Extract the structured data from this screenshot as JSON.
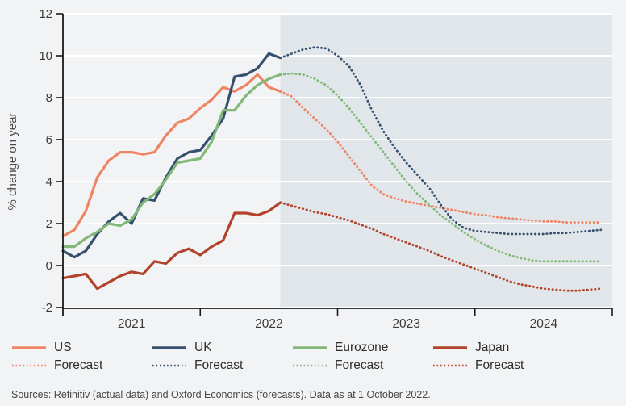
{
  "chart_data": {
    "type": "line",
    "title": "",
    "ylabel": "% change on year",
    "ylim": [
      -2,
      12
    ],
    "yticks": [
      12,
      10,
      8,
      6,
      4,
      2,
      0,
      -2
    ],
    "xtick_year_labels": [
      "2021",
      "2022",
      "2023",
      "2024"
    ],
    "grid": "horizontal white gridlines at every 2 units",
    "legend_position": "bottom",
    "x_months": [
      "2021-01",
      "2021-02",
      "2021-03",
      "2021-04",
      "2021-05",
      "2021-06",
      "2021-07",
      "2021-08",
      "2021-09",
      "2021-10",
      "2021-11",
      "2021-12",
      "2022-01",
      "2022-02",
      "2022-03",
      "2022-04",
      "2022-05",
      "2022-06",
      "2022-07",
      "2022-08",
      "2022-09",
      "2022-10",
      "2022-11",
      "2022-12",
      "2023-01",
      "2023-02",
      "2023-03",
      "2023-04",
      "2023-05",
      "2023-06",
      "2023-07",
      "2023-08",
      "2023-09",
      "2023-10",
      "2023-11",
      "2023-12",
      "2024-01",
      "2024-02",
      "2024-03",
      "2024-04",
      "2024-05",
      "2024-06",
      "2024-07",
      "2024-08",
      "2024-09",
      "2024-10",
      "2024-11",
      "2024-12"
    ],
    "actual_through": "2022-08",
    "forecast_from": "2022-09",
    "forecast_region_start": "2022-08",
    "series": [
      {
        "name": "US",
        "color_key": "us",
        "actual": {
          "start_month": "2021-01",
          "values": [
            1.4,
            1.7,
            2.6,
            4.2,
            5.0,
            5.4,
            5.4,
            5.3,
            5.4,
            6.2,
            6.8,
            7.0,
            7.5,
            7.9,
            8.5,
            8.3,
            8.6,
            9.1,
            8.5,
            8.3
          ]
        },
        "forecast": {
          "start_month": "2022-09",
          "values": [
            8.05,
            7.5,
            7.0,
            6.5,
            5.9,
            5.2,
            4.5,
            3.8,
            3.4,
            3.2,
            3.05,
            2.95,
            2.85,
            2.75,
            2.65,
            2.55,
            2.45,
            2.4,
            2.3,
            2.25,
            2.2,
            2.15,
            2.1,
            2.1,
            2.05,
            2.05,
            2.05,
            2.05
          ]
        }
      },
      {
        "name": "UK",
        "color_key": "uk",
        "actual": {
          "start_month": "2021-01",
          "values": [
            0.7,
            0.4,
            0.7,
            1.5,
            2.1,
            2.5,
            2.0,
            3.2,
            3.1,
            4.2,
            5.1,
            5.4,
            5.5,
            6.2,
            7.0,
            9.0,
            9.1,
            9.4,
            10.1,
            9.9
          ]
        },
        "forecast": {
          "start_month": "2022-09",
          "values": [
            10.1,
            10.3,
            10.4,
            10.35,
            10.0,
            9.5,
            8.6,
            7.4,
            6.4,
            5.6,
            4.9,
            4.3,
            3.7,
            2.9,
            2.2,
            1.8,
            1.65,
            1.6,
            1.55,
            1.5,
            1.5,
            1.5,
            1.5,
            1.55,
            1.55,
            1.6,
            1.65,
            1.7
          ]
        }
      },
      {
        "name": "Eurozone",
        "color_key": "eurozone",
        "actual": {
          "start_month": "2021-01",
          "values": [
            0.9,
            0.9,
            1.3,
            1.6,
            2.0,
            1.9,
            2.2,
            3.0,
            3.4,
            4.1,
            4.9,
            5.0,
            5.1,
            5.9,
            7.4,
            7.4,
            8.1,
            8.6,
            8.9,
            9.1
          ]
        },
        "forecast": {
          "start_month": "2022-09",
          "values": [
            9.15,
            9.1,
            8.9,
            8.6,
            8.1,
            7.5,
            6.8,
            6.1,
            5.4,
            4.7,
            4.0,
            3.4,
            2.9,
            2.4,
            2.0,
            1.6,
            1.25,
            0.95,
            0.7,
            0.5,
            0.35,
            0.25,
            0.2,
            0.2,
            0.2,
            0.2,
            0.2,
            0.2
          ]
        }
      },
      {
        "name": "Japan",
        "color_key": "japan",
        "actual": {
          "start_month": "2021-01",
          "values": [
            -0.6,
            -0.5,
            -0.4,
            -1.1,
            -0.8,
            -0.5,
            -0.3,
            -0.4,
            0.2,
            0.1,
            0.6,
            0.8,
            0.5,
            0.9,
            1.2,
            2.5,
            2.5,
            2.4,
            2.6,
            3.0
          ]
        },
        "forecast": {
          "start_month": "2022-09",
          "values": [
            2.85,
            2.7,
            2.55,
            2.45,
            2.3,
            2.15,
            1.95,
            1.75,
            1.5,
            1.3,
            1.1,
            0.9,
            0.7,
            0.45,
            0.25,
            0.05,
            -0.15,
            -0.35,
            -0.55,
            -0.75,
            -0.9,
            -1.0,
            -1.1,
            -1.15,
            -1.2,
            -1.2,
            -1.15,
            -1.1
          ]
        }
      }
    ]
  },
  "legend": {
    "series": [
      {
        "label": "US",
        "forecast_label": "Forecast",
        "color_key": "us"
      },
      {
        "label": "UK",
        "forecast_label": "Forecast",
        "color_key": "uk"
      },
      {
        "label": "Eurozone",
        "forecast_label": "Forecast",
        "color_key": "eurozone"
      },
      {
        "label": "Japan",
        "forecast_label": "Forecast",
        "color_key": "japan"
      }
    ]
  },
  "source_note": "Sources: Refinitiv (actual data) and Oxford Economics (forecasts). Data as at 1 October 2022.",
  "colors": {
    "us": "#EF8465",
    "uk": "#35516F",
    "eurozone": "#82B877",
    "japan": "#B2432B",
    "background": "#F2F3F5",
    "forecast_region": "#E0E6E9",
    "gridline": "#FFFFFF",
    "axis": "#1A1A1A",
    "tick_text": "#3A3A3A",
    "legend_text": "#2E2E2E",
    "source_text": "#474747"
  }
}
